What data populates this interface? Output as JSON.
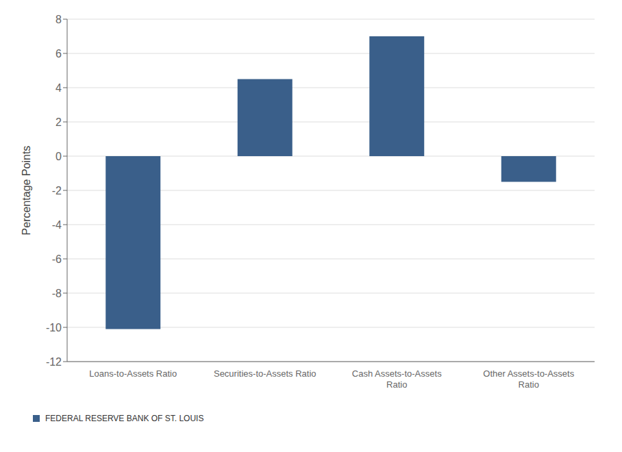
{
  "chart_data": {
    "type": "bar",
    "categories": [
      "Loans-to-Assets Ratio",
      "Securities-to-Assets Ratio",
      "Cash Assets-to-Assets\nRatio",
      "Other Assets-to-Assets\nRatio"
    ],
    "values": [
      -10.1,
      4.5,
      7.0,
      -1.5
    ],
    "color": "#3A5F8A",
    "ylabel": "Percentage Points",
    "ylim": [
      -12,
      8
    ],
    "yticks": [
      -12,
      -10,
      -8,
      -6,
      -4,
      -2,
      0,
      2,
      4,
      6,
      8
    ],
    "grid": true,
    "annotations": [
      "FEDERAL RESERVE BANK OF ST. LOUIS"
    ]
  }
}
